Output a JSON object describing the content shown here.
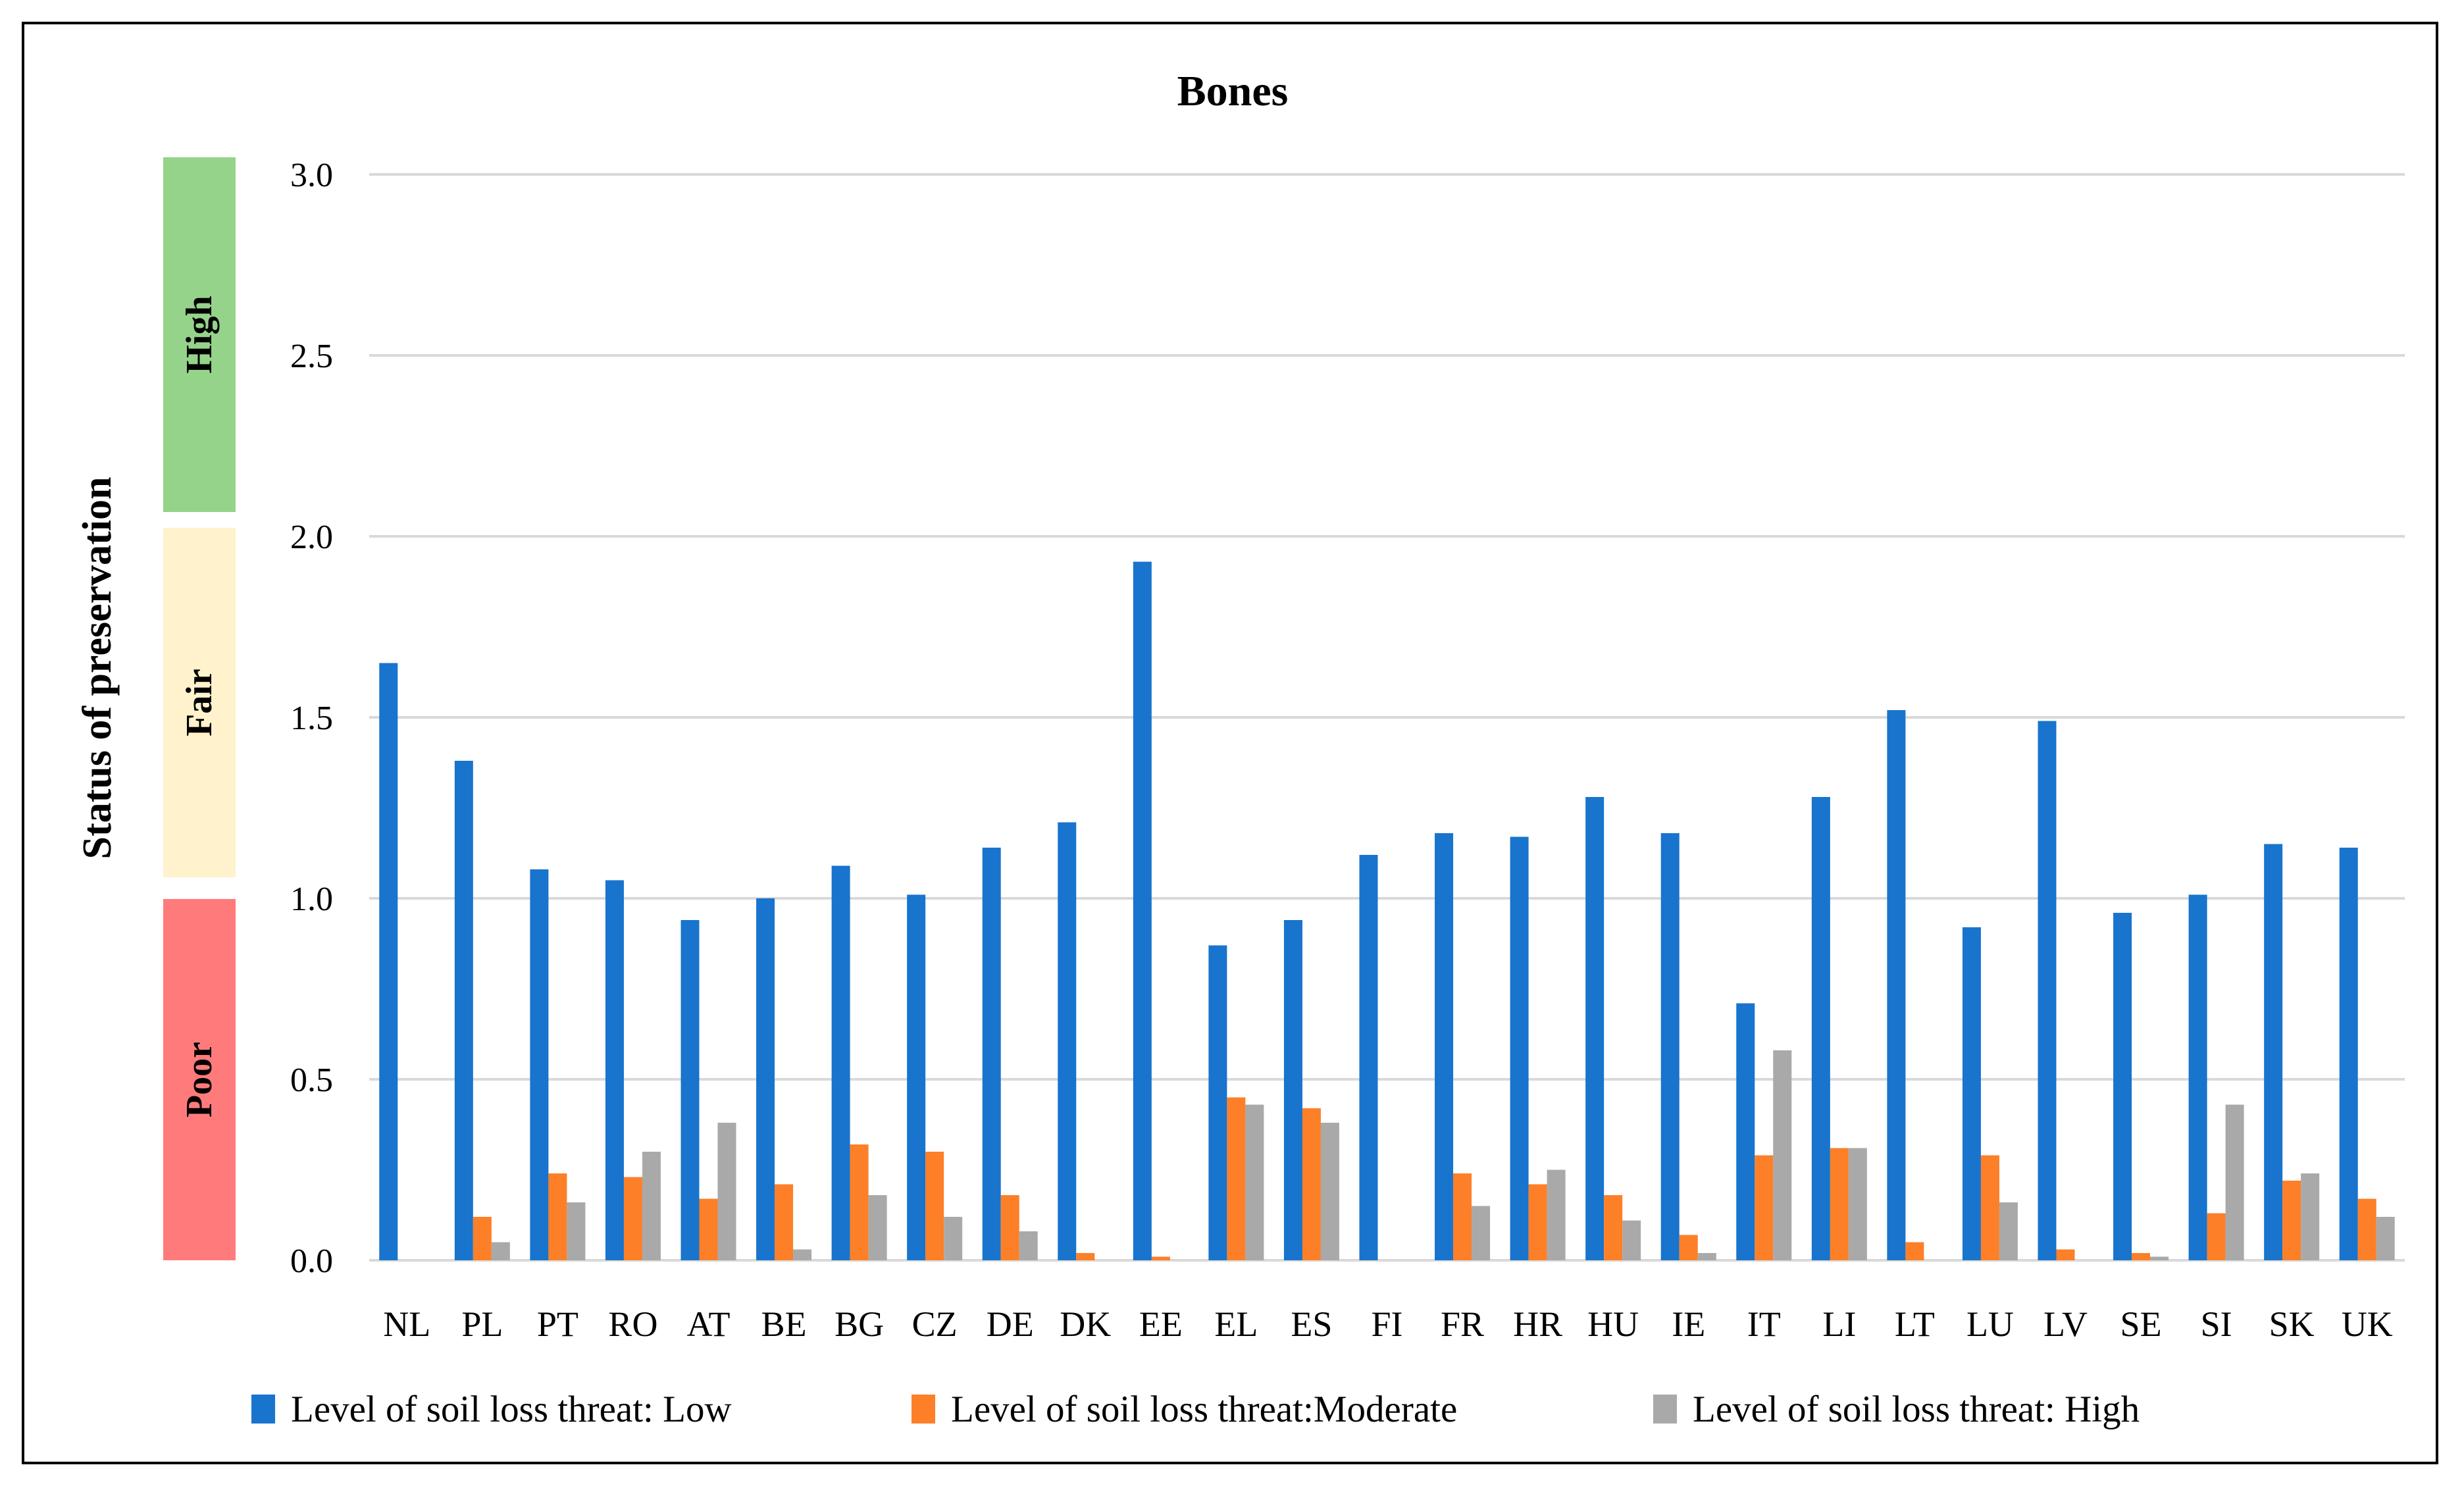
{
  "chart_data": {
    "type": "bar",
    "title": "Bones",
    "ylabel": "Status of preservation",
    "xlabel": "",
    "ylim": [
      0,
      3.0
    ],
    "yticks": [
      "0.0",
      "0.5",
      "1.0",
      "1.5",
      "2.0",
      "2.5",
      "3.0"
    ],
    "grid": true,
    "legend_position": "bottom",
    "categories": [
      "NL",
      "PL",
      "PT",
      "RO",
      "AT",
      "BE",
      "BG",
      "CZ",
      "DE",
      "DK",
      "EE",
      "EL",
      "ES",
      "FI",
      "FR",
      "HR",
      "HU",
      "IE",
      "IT",
      "LI",
      "LT",
      "LU",
      "LV",
      "SE",
      "SI",
      "SK",
      "UK"
    ],
    "series": [
      {
        "name": "Level of soil loss threat: Low",
        "color": "#1874CD",
        "values": [
          1.65,
          1.38,
          1.08,
          1.05,
          0.94,
          1.0,
          1.09,
          1.01,
          1.14,
          1.21,
          1.93,
          0.87,
          0.94,
          1.12,
          1.18,
          1.17,
          1.28,
          1.18,
          0.71,
          1.28,
          1.52,
          0.92,
          1.49,
          0.96,
          1.01,
          1.15,
          1.14
        ]
      },
      {
        "name": "Level of soil loss threat:Moderate",
        "color": "#FD7F28",
        "values": [
          0,
          0.12,
          0.24,
          0.23,
          0.17,
          0.21,
          0.32,
          0.3,
          0.18,
          0.02,
          0.01,
          0.45,
          0.42,
          0,
          0.24,
          0.21,
          0.18,
          0.07,
          0.29,
          0.31,
          0.05,
          0.29,
          0.03,
          0.02,
          0.13,
          0.22,
          0.17
        ]
      },
      {
        "name": "Level of soil loss threat: High",
        "color": "#A9A9A9",
        "values": [
          0,
          0.05,
          0.16,
          0.3,
          0.38,
          0.03,
          0.18,
          0.12,
          0.08,
          0,
          0,
          0.43,
          0.38,
          0,
          0.15,
          0.25,
          0.11,
          0.02,
          0.58,
          0.31,
          0,
          0.16,
          0,
          0.01,
          0.43,
          0.24,
          0.12
        ]
      }
    ],
    "status_bands": [
      {
        "label": "High",
        "color": "#95D38A"
      },
      {
        "label": "Fair",
        "color": "#FFF2CC"
      },
      {
        "label": "Poor",
        "color": "#FF7B7B"
      }
    ]
  }
}
